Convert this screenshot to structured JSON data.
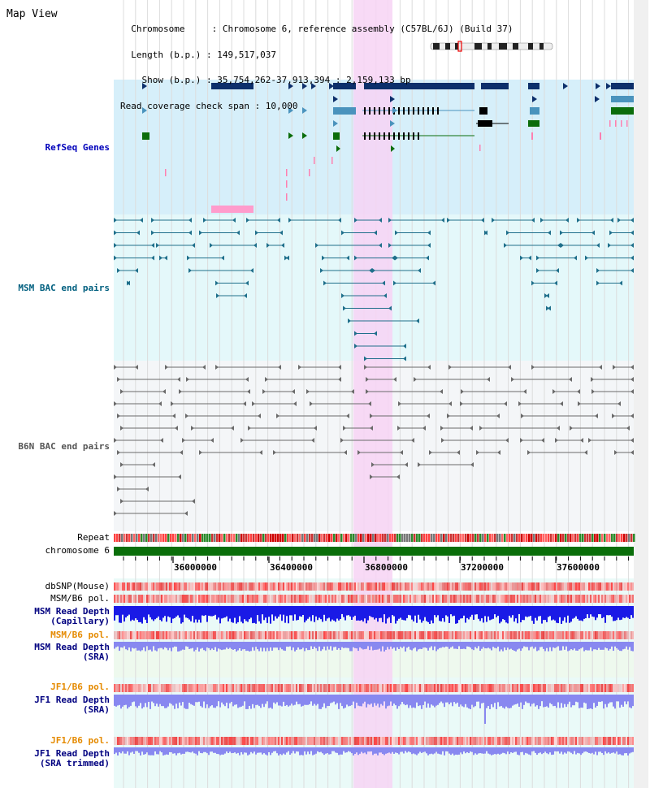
{
  "header": {
    "title": "Map View",
    "info_lines": [
      "  Chromosome     : Chromosome 6, reference assembly (C57BL/6J) (Build 37)",
      "  Length (b.p.) : 149,517,037",
      "    Show (b.p.) : 35,754,262-37,913,394 : 2,159,133 bp",
      "Read coverage check span : 10,000"
    ]
  },
  "tracks": {
    "refseq": "RefSeq Genes",
    "msm_bac": "MSM BAC end pairs",
    "b6n_bac": "B6N BAC end pairs",
    "repeat": "Repeat",
    "chromosome": "chromosome 6",
    "dbsnp": "dbSNP(Mouse)",
    "msm_b6_pol_1": "MSM/B6 pol.",
    "msm_depth_cap": "MSM Read Depth\n(Capillary)",
    "msm_b6_pol_2": "MSM/B6 pol.",
    "msm_depth_sra": "MSM Read Depth\n(SRA)",
    "jf1_b6_pol_1": "JF1/B6 pol.",
    "jf1_depth_sra": "JF1 Read Depth\n(SRA)",
    "jf1_b6_pol_2": "JF1/B6 pol.",
    "jf1_depth_trim": "JF1 Read Depth\n(SRA trimmed)"
  },
  "axis": {
    "ticks": [
      "36000000",
      "36400000",
      "36800000",
      "37200000",
      "37600000"
    ]
  },
  "colors": {
    "refseq_bg": "#d6effa",
    "refseq_label": "#0000bb",
    "msm_bac_bg": "#e4f8fa",
    "msm_bac_label": "#005f7f",
    "b6n_bg": "#f4f6f8",
    "b6n_label": "#555555",
    "highlight": "#f7d4f4",
    "chromosome_bar": "#0a6e0a",
    "depth_blue": "#1a1ae6",
    "depth_light": "#8888f0",
    "pol_label_orange": "#e58a00"
  }
}
